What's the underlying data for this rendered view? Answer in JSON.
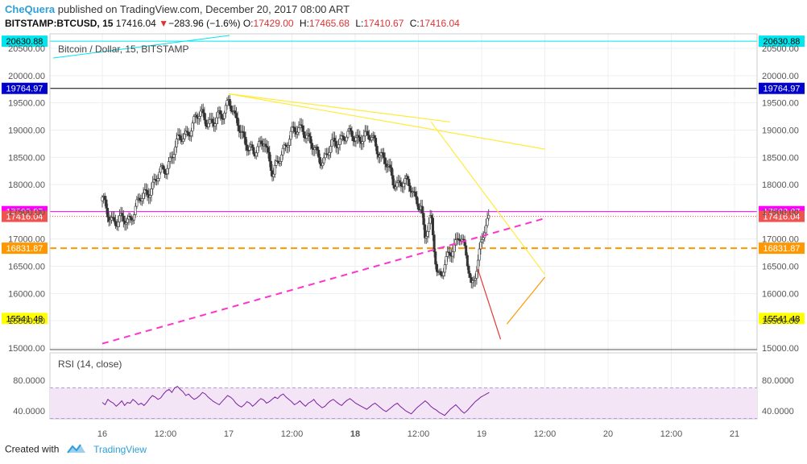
{
  "header": {
    "author": "CheQuera",
    "published_text": "published on TradingView.com, December 20, 2017 08:00 ART",
    "symbol": "BITSTAMP:BTCUSD, 15",
    "last": "17416.04",
    "change": "−283.96 (−1.6%)",
    "o_label": "O:",
    "o_value": "17429.00",
    "h_label": "H:",
    "h_value": "17465.68",
    "l_label": "L:",
    "l_value": "17410.67",
    "c_label": "C:",
    "c_value": "17416.04"
  },
  "footer": {
    "created_with": "Created with",
    "brand": "TradingView"
  },
  "chart_data": {
    "type": "candlestick",
    "title": "Bitcoin / Dollar, 15, BITSTAMP",
    "price_axis": {
      "ticks": [
        "15000.00",
        "15500.00",
        "16000.00",
        "16500.00",
        "17000.00",
        "17500.00",
        "18000.00",
        "18500.00",
        "19000.00",
        "19500.00",
        "20000.00",
        "20500.00"
      ]
    },
    "x_axis": {
      "ticks": [
        "16",
        "12:00",
        "17",
        "12:00",
        "18",
        "12:00",
        "19",
        "12:00",
        "20",
        "12:00",
        "21"
      ],
      "bold": [
        "18"
      ]
    },
    "price_labels": [
      {
        "value": "20630.88",
        "side": "both",
        "color": "#00e5ee",
        "text_color": "#000000",
        "line": "solid"
      },
      {
        "value": "19764.97",
        "side": "both",
        "color": "#0000cc",
        "text_color": "#ffffff",
        "line": "solid-black"
      },
      {
        "value": "17503.87",
        "side": "both",
        "color": "#ff00ff",
        "text_color": "#ffffff",
        "line": "solid"
      },
      {
        "value": "17416.04",
        "side": "both",
        "color": "#ef5350",
        "text_color": "#ffffff",
        "line": "dotted"
      },
      {
        "value": "16831.87",
        "side": "both",
        "color": "#ff9800",
        "text_color": "#ffffff",
        "line": "dashed"
      },
      {
        "value": "15541.48",
        "side": "left-right",
        "color": "#ffff00",
        "text_color": "#000000",
        "line": "none"
      }
    ],
    "trendlines_price": [
      {
        "name": "descending-resistance",
        "color": "#ffeb3b",
        "from": {
          "t": 1.0,
          "p": 19665
        },
        "to": {
          "t": 2.75,
          "p": 19150
        }
      },
      {
        "name": "descending-resistance-ext",
        "color": "#ffeb3b",
        "from": {
          "t": 1.0,
          "p": 19665
        },
        "to": {
          "t": 3.5,
          "p": 18650
        }
      },
      {
        "name": "steep-resistance",
        "color": "#ffeb3b",
        "from": {
          "t": 2.6,
          "p": 19150
        },
        "to": {
          "t": 3.5,
          "p": 16350
        }
      },
      {
        "name": "rising-support",
        "color": "#ff33cc",
        "dashed": true,
        "from": {
          "t": 0.0,
          "p": 15080
        },
        "to": {
          "t": 3.5,
          "p": 17380
        }
      },
      {
        "name": "drop-arrow",
        "color": "#e53935",
        "from": {
          "t": 2.97,
          "p": 16450
        },
        "to": {
          "t": 3.15,
          "p": 15160
        }
      },
      {
        "name": "projection",
        "color": "#ff9800",
        "from": {
          "t": 3.2,
          "p": 15440
        },
        "to": {
          "t": 3.5,
          "p": 16300
        }
      }
    ],
    "rsi": {
      "label": "RSI (14, close)",
      "ticks": [
        "80.0000",
        "40.0000"
      ],
      "upper": 70,
      "lower": 30,
      "values": [
        51,
        48,
        55,
        52,
        50,
        46,
        49,
        53,
        47,
        51,
        50,
        55,
        52,
        48,
        50,
        47,
        51,
        56,
        60,
        58,
        55,
        57,
        62,
        66,
        68,
        64,
        70,
        72,
        68,
        65,
        60,
        62,
        58,
        55,
        57,
        60,
        64,
        62,
        58,
        55,
        52,
        50,
        48,
        52,
        56,
        60,
        58,
        55,
        50,
        47,
        45,
        48,
        52,
        50,
        46,
        49,
        53,
        56,
        54,
        50,
        52,
        55,
        58,
        56,
        60,
        62,
        58,
        55,
        52,
        48,
        50,
        53,
        49,
        46,
        50,
        52,
        55,
        50,
        47,
        44,
        46,
        50,
        53,
        55,
        52,
        49,
        47,
        51,
        54,
        56,
        53,
        50,
        48,
        46,
        44,
        42,
        45,
        48,
        50,
        47,
        44,
        41,
        39,
        42,
        45,
        48,
        50,
        46,
        43,
        40,
        38,
        36,
        40,
        44,
        47,
        50,
        53,
        50,
        46,
        43,
        41,
        38,
        36,
        34,
        38,
        42,
        45,
        48,
        44,
        40,
        37,
        40,
        44,
        48,
        52,
        55,
        58,
        60,
        62,
        64
      ]
    }
  }
}
